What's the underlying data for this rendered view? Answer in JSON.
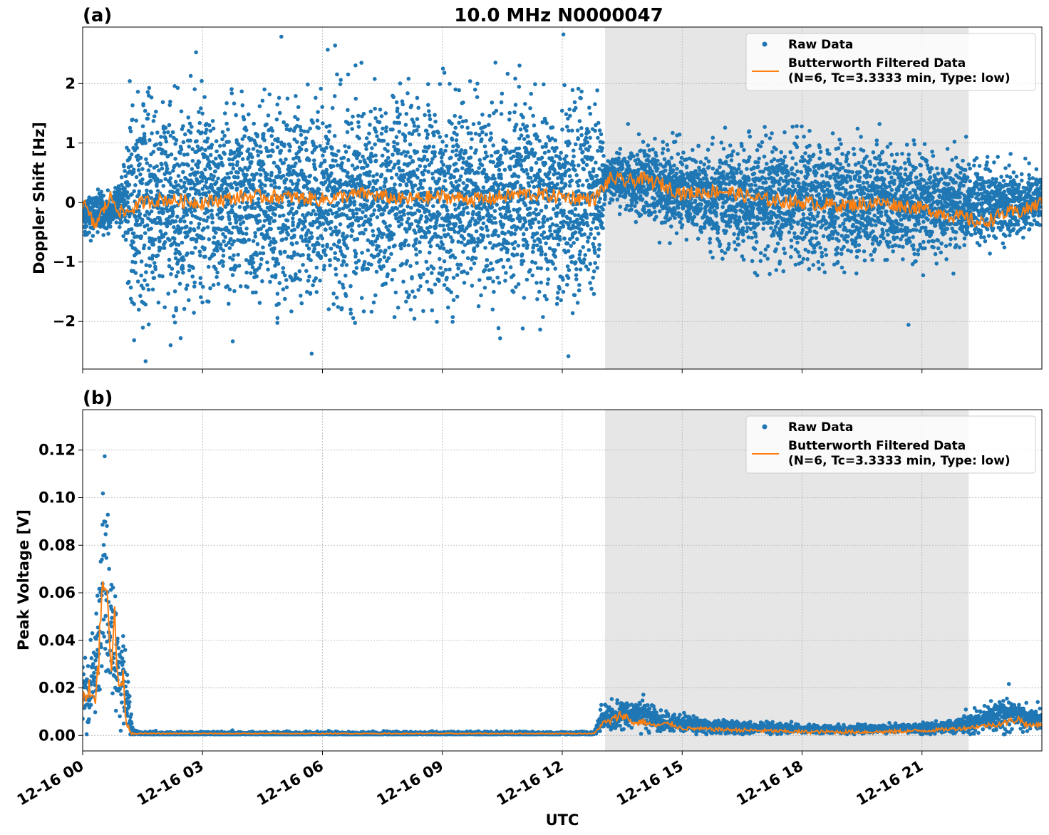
{
  "figure": {
    "title": "10.0 MHz N0000047",
    "xlabel": "UTC"
  },
  "colors": {
    "raw": "#1f77b4",
    "filtered": "#ff7f0e",
    "shade": "#e6e6e6",
    "grid": "#b0b0b0"
  },
  "legend": {
    "raw_label": "Raw Data",
    "filtered_label_line1": "Butterworth Filtered Data",
    "filtered_label_line2": "(N=6, Tc=3.3333 min, Type: low)",
    "placement": "upper right"
  },
  "x_axis": {
    "range_hours": [
      0,
      24
    ],
    "tick_hours": [
      0,
      3,
      6,
      9,
      12,
      15,
      18,
      21
    ],
    "tick_labels": [
      "12-16 00",
      "12-16 03",
      "12-16 06",
      "12-16 09",
      "12-16 12",
      "12-16 15",
      "12-16 18",
      "12-16 21"
    ]
  },
  "chart_data": [
    {
      "type": "scatter",
      "panel_label": "(a)",
      "ylabel": "Doppler Shift [Hz]",
      "ylim": [
        -2.8,
        2.95
      ],
      "yticks": [
        -2,
        -1,
        0,
        1,
        2
      ],
      "ytick_labels": [
        "−2",
        "−1",
        "0",
        "1",
        "2"
      ],
      "grid": true,
      "legend": "top-right",
      "shaded_interval_hours": [
        13.07,
        22.17
      ],
      "series": [
        {
          "name": "Raw Data",
          "kind": "points",
          "envelope_hours": [
            0,
            0.6,
            1.0,
            1.2,
            3,
            6,
            9,
            12,
            12.9,
            13.1,
            14,
            16,
            18,
            20,
            22,
            23,
            24
          ],
          "envelope_low": [
            -0.6,
            -0.5,
            -0.3,
            -1.6,
            -1.6,
            -1.5,
            -1.5,
            -1.5,
            -1.5,
            0.2,
            -0.3,
            -0.7,
            -1.0,
            -0.9,
            -0.8,
            -0.6,
            -0.5
          ],
          "envelope_high": [
            0.2,
            0.1,
            0.4,
            1.6,
            1.6,
            1.6,
            1.6,
            1.6,
            1.6,
            0.7,
            1.0,
            0.8,
            1.0,
            0.9,
            0.7,
            0.6,
            0.5
          ]
        },
        {
          "name": "Butterworth Filtered Data (N=6, Tc=3.3333 min, Type: low)",
          "kind": "line",
          "x_hours": [
            0,
            0.3,
            0.7,
            1.0,
            1.5,
            2,
            3,
            4,
            5,
            6,
            7,
            8,
            9,
            10,
            11,
            12,
            12.8,
            13.2,
            13.6,
            14,
            14.5,
            15,
            16,
            17,
            18,
            19,
            20,
            21,
            22,
            22.5,
            23,
            23.5,
            24
          ],
          "y": [
            0.0,
            -0.4,
            0.1,
            -0.2,
            0.0,
            0.05,
            0.0,
            0.1,
            0.1,
            0.05,
            0.15,
            0.05,
            0.1,
            0.05,
            0.15,
            0.1,
            0.05,
            0.4,
            0.35,
            0.4,
            0.3,
            0.15,
            0.2,
            0.05,
            0.0,
            -0.05,
            0.0,
            -0.1,
            -0.25,
            -0.35,
            -0.2,
            -0.15,
            0.0
          ]
        }
      ]
    },
    {
      "type": "scatter",
      "panel_label": "(b)",
      "ylabel": "Peak Voltage [V]",
      "ylim": [
        -0.0065,
        0.137
      ],
      "yticks": [
        0.0,
        0.02,
        0.04,
        0.06,
        0.08,
        0.1,
        0.12
      ],
      "ytick_labels": [
        "0.00",
        "0.02",
        "0.04",
        "0.06",
        "0.08",
        "0.10",
        "0.12"
      ],
      "grid": true,
      "legend": "top-right",
      "shaded_interval_hours": [
        13.07,
        22.17
      ],
      "series": [
        {
          "name": "Raw Data",
          "kind": "points",
          "envelope_hours": [
            0,
            0.3,
            0.45,
            0.55,
            0.7,
            0.9,
            1.05,
            1.25,
            1.5,
            12.8,
            13.0,
            13.5,
            14.0,
            14.5,
            15.5,
            17,
            19,
            21,
            22,
            23.2,
            24
          ],
          "envelope_low": [
            0.003,
            0.006,
            0.015,
            0.02,
            0.01,
            0.005,
            0.002,
            0.0,
            0.0,
            0.0,
            0.002,
            0.003,
            0.003,
            0.002,
            0.001,
            0.0008,
            0.0008,
            0.001,
            0.001,
            0.002,
            0.003
          ],
          "envelope_high": [
            0.034,
            0.04,
            0.08,
            0.13,
            0.078,
            0.05,
            0.04,
            0.003,
            0.0015,
            0.0015,
            0.013,
            0.014,
            0.016,
            0.01,
            0.007,
            0.005,
            0.004,
            0.005,
            0.007,
            0.017,
            0.01
          ]
        },
        {
          "name": "Butterworth Filtered Data (N=6, Tc=3.3333 min, Type: low)",
          "kind": "line",
          "x_hours": [
            0,
            0.15,
            0.3,
            0.4,
            0.5,
            0.55,
            0.6,
            0.7,
            0.8,
            0.9,
            1.0,
            1.1,
            1.2,
            1.3,
            6,
            12.8,
            13.0,
            13.2,
            13.5,
            13.8,
            14.0,
            14.3,
            14.7,
            15.0,
            16,
            17,
            18,
            19,
            20,
            21,
            22,
            22.5,
            23,
            23.4,
            23.7,
            24
          ],
          "y": [
            0.015,
            0.022,
            0.014,
            0.03,
            0.065,
            0.05,
            0.085,
            0.03,
            0.045,
            0.02,
            0.025,
            0.005,
            0.0015,
            0.0008,
            0.0008,
            0.0008,
            0.005,
            0.006,
            0.009,
            0.005,
            0.006,
            0.004,
            0.005,
            0.003,
            0.0025,
            0.002,
            0.0015,
            0.0015,
            0.0015,
            0.002,
            0.003,
            0.004,
            0.005,
            0.007,
            0.004,
            0.005
          ]
        }
      ]
    }
  ]
}
